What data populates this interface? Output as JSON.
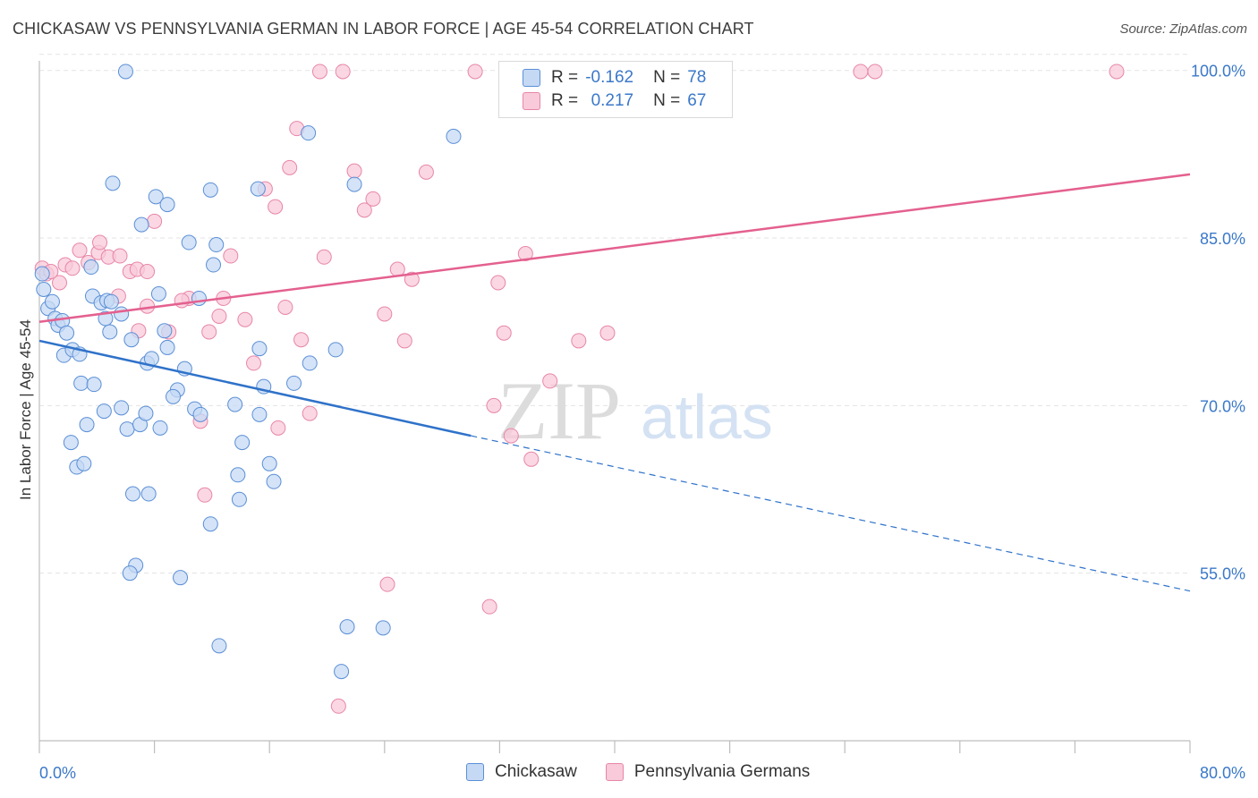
{
  "title": "CHICKASAW VS PENNSYLVANIA GERMAN IN LABOR FORCE | AGE 45-54 CORRELATION CHART",
  "source": "Source: ZipAtlas.com",
  "watermark": {
    "zip": "ZIP",
    "atlas": "atlas"
  },
  "legend": {
    "rows": [
      {
        "r_label": "R =",
        "r_value": "-0.162",
        "n_label": "N =",
        "n_value": "78"
      },
      {
        "r_label": "R =",
        "r_value": "0.217",
        "n_label": "N =",
        "n_value": "67"
      }
    ]
  },
  "bottom_legend": [
    "Chickasaw",
    "Pennsylvania Germans"
  ],
  "colors": {
    "chickasaw_fill": "#c5d9f4",
    "chickasaw_stroke": "#5b8fd6",
    "chickasaw_line": "#2f72c9",
    "pg_fill": "#f8cada",
    "pg_stroke": "#e886a8",
    "pg_line": "#e4608f",
    "tick_text": "#3b78c9",
    "grid": "#e3e3e3"
  },
  "chart_data": {
    "type": "scatter",
    "title": "CHICKASAW VS PENNSYLVANIA GERMAN IN LABOR FORCE | AGE 45-54 CORRELATION CHART",
    "xlabel": "",
    "ylabel": "In Labor Force | Age 45-54",
    "xlim": [
      0,
      80
    ],
    "ylim": [
      40,
      101.5
    ],
    "x_tick_labels": [
      "0.0%",
      "80.0%"
    ],
    "y_ticks": [
      55,
      70,
      85,
      100
    ],
    "y_tick_labels": [
      "55.0%",
      "70.0%",
      "85.0%",
      "100.0%"
    ],
    "grid": true,
    "series": [
      {
        "name": "Chickasaw",
        "trend": {
          "x": [
            0,
            30
          ],
          "y": [
            75.8,
            67.3
          ],
          "dashed_to": {
            "x": 80,
            "y": 53.4
          }
        },
        "points": [
          [
            0.3,
            80.4
          ],
          [
            0.6,
            78.7
          ],
          [
            0.9,
            79.3
          ],
          [
            1.1,
            77.8
          ],
          [
            1.3,
            77.2
          ],
          [
            1.6,
            77.6
          ],
          [
            1.9,
            76.5
          ],
          [
            1.7,
            74.5
          ],
          [
            2.3,
            75.0
          ],
          [
            2.8,
            74.6
          ],
          [
            2.9,
            72.0
          ],
          [
            3.8,
            71.9
          ],
          [
            3.3,
            68.3
          ],
          [
            2.2,
            66.7
          ],
          [
            2.6,
            64.5
          ],
          [
            3.1,
            64.8
          ],
          [
            3.6,
            82.4
          ],
          [
            3.7,
            79.8
          ],
          [
            4.3,
            79.2
          ],
          [
            4.6,
            77.8
          ],
          [
            4.9,
            76.6
          ],
          [
            4.7,
            79.4
          ],
          [
            5.0,
            79.3
          ],
          [
            5.7,
            78.2
          ],
          [
            6.0,
            99.9
          ],
          [
            5.1,
            89.9
          ],
          [
            7.1,
            86.2
          ],
          [
            8.1,
            88.7
          ],
          [
            8.9,
            88.0
          ],
          [
            10.4,
            84.6
          ],
          [
            11.9,
            89.3
          ],
          [
            12.1,
            82.6
          ],
          [
            12.3,
            84.4
          ],
          [
            11.1,
            79.6
          ],
          [
            8.3,
            80.0
          ],
          [
            6.4,
            75.9
          ],
          [
            7.5,
            73.8
          ],
          [
            7.8,
            74.2
          ],
          [
            8.9,
            75.2
          ],
          [
            9.6,
            71.4
          ],
          [
            9.3,
            70.8
          ],
          [
            10.1,
            73.3
          ],
          [
            10.8,
            69.7
          ],
          [
            11.2,
            69.2
          ],
          [
            4.5,
            69.5
          ],
          [
            5.7,
            69.8
          ],
          [
            6.1,
            67.9
          ],
          [
            7.0,
            68.3
          ],
          [
            7.4,
            69.3
          ],
          [
            8.4,
            68.0
          ],
          [
            8.7,
            76.7
          ],
          [
            13.6,
            70.1
          ],
          [
            14.1,
            66.7
          ],
          [
            15.3,
            75.1
          ],
          [
            15.6,
            71.7
          ],
          [
            15.3,
            69.2
          ],
          [
            16.0,
            64.8
          ],
          [
            16.3,
            63.2
          ],
          [
            18.8,
            73.8
          ],
          [
            20.6,
            75.0
          ],
          [
            18.7,
            94.4
          ],
          [
            15.2,
            89.4
          ],
          [
            21.9,
            89.8
          ],
          [
            28.8,
            94.1
          ],
          [
            13.8,
            63.8
          ],
          [
            13.9,
            61.6
          ],
          [
            11.9,
            59.4
          ],
          [
            6.5,
            62.1
          ],
          [
            7.6,
            62.1
          ],
          [
            6.7,
            55.7
          ],
          [
            6.3,
            55.0
          ],
          [
            9.8,
            54.6
          ],
          [
            12.5,
            48.5
          ],
          [
            21.4,
            50.2
          ],
          [
            23.9,
            50.1
          ],
          [
            21.0,
            46.2
          ],
          [
            17.7,
            72.0
          ],
          [
            0.2,
            81.8
          ]
        ]
      },
      {
        "name": "Pennsylvania Germans",
        "trend": {
          "x": [
            0,
            80
          ],
          "y": [
            77.5,
            90.7
          ]
        },
        "points": [
          [
            0.2,
            82.3
          ],
          [
            0.5,
            81.8
          ],
          [
            0.8,
            82.0
          ],
          [
            1.4,
            81.0
          ],
          [
            1.8,
            82.6
          ],
          [
            2.3,
            82.3
          ],
          [
            2.8,
            83.9
          ],
          [
            3.4,
            82.8
          ],
          [
            4.1,
            83.7
          ],
          [
            4.2,
            84.6
          ],
          [
            4.8,
            83.3
          ],
          [
            5.6,
            83.4
          ],
          [
            6.3,
            82.0
          ],
          [
            6.8,
            82.2
          ],
          [
            7.5,
            82.0
          ],
          [
            7.5,
            78.9
          ],
          [
            8.0,
            86.5
          ],
          [
            5.5,
            79.8
          ],
          [
            6.9,
            76.7
          ],
          [
            9.0,
            76.6
          ],
          [
            10.4,
            79.6
          ],
          [
            9.9,
            79.4
          ],
          [
            11.8,
            76.6
          ],
          [
            12.5,
            78.0
          ],
          [
            12.8,
            79.6
          ],
          [
            13.3,
            83.4
          ],
          [
            14.3,
            77.7
          ],
          [
            14.9,
            73.8
          ],
          [
            15.7,
            89.4
          ],
          [
            16.4,
            87.8
          ],
          [
            17.1,
            78.8
          ],
          [
            17.4,
            91.3
          ],
          [
            17.9,
            94.8
          ],
          [
            18.2,
            75.9
          ],
          [
            18.8,
            69.3
          ],
          [
            16.6,
            68.0
          ],
          [
            11.2,
            68.6
          ],
          [
            11.5,
            62.0
          ],
          [
            19.5,
            99.9
          ],
          [
            21.1,
            99.9
          ],
          [
            19.8,
            83.3
          ],
          [
            21.9,
            91.0
          ],
          [
            22.6,
            87.5
          ],
          [
            23.2,
            88.5
          ],
          [
            24.0,
            78.2
          ],
          [
            24.9,
            82.2
          ],
          [
            25.4,
            75.8
          ],
          [
            25.9,
            81.3
          ],
          [
            26.9,
            90.9
          ],
          [
            30.3,
            99.9
          ],
          [
            31.6,
            70.0
          ],
          [
            31.3,
            52.0
          ],
          [
            31.9,
            81.0
          ],
          [
            32.3,
            76.5
          ],
          [
            32.8,
            67.3
          ],
          [
            33.8,
            83.6
          ],
          [
            34.2,
            65.2
          ],
          [
            35.5,
            72.2
          ],
          [
            35.3,
            99.8
          ],
          [
            37.5,
            75.8
          ],
          [
            39.5,
            76.5
          ],
          [
            46.6,
            99.9
          ],
          [
            57.1,
            99.9
          ],
          [
            58.1,
            99.9
          ],
          [
            74.9,
            99.9
          ],
          [
            24.2,
            54.0
          ],
          [
            20.8,
            43.1
          ]
        ]
      }
    ]
  }
}
